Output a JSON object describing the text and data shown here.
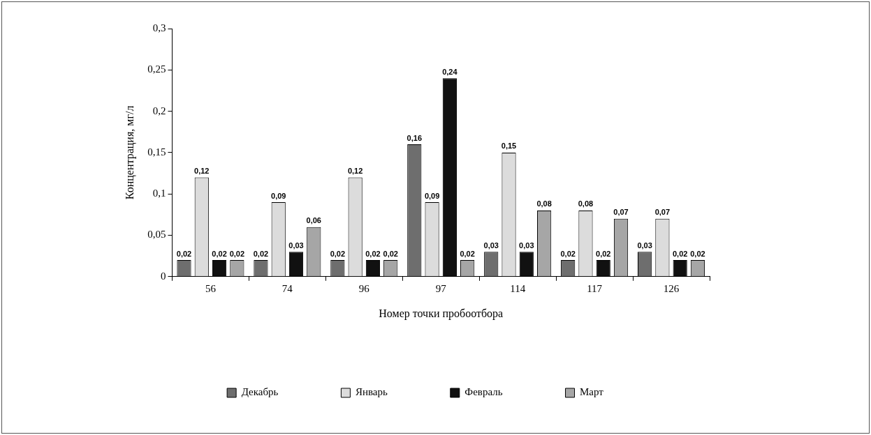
{
  "chart_data": {
    "type": "bar",
    "xlabel": "Номер точки пробоотбора",
    "ylabel": "Концентрация, мг/л",
    "categories": [
      "56",
      "74",
      "96",
      "97",
      "114",
      "117",
      "126"
    ],
    "series": [
      {
        "name": "Декабрь",
        "color": "#6e6e6e",
        "values": [
          0.02,
          0.02,
          0.02,
          0.16,
          0.03,
          0.02,
          0.03
        ],
        "value_labels": [
          "0,02",
          "0,02",
          "0,02",
          "0,16",
          "0,03",
          "0,02",
          "0,03"
        ]
      },
      {
        "name": "Январь",
        "color": "#dcdcdc",
        "values": [
          0.12,
          0.09,
          0.12,
          0.09,
          0.15,
          0.08,
          0.07
        ],
        "value_labels": [
          "0,12",
          "0,09",
          "0,12",
          "0,09",
          "0,15",
          "0,08",
          "0,07"
        ]
      },
      {
        "name": "Февраль",
        "color": "#111111",
        "values": [
          0.02,
          0.03,
          0.02,
          0.24,
          0.03,
          0.02,
          0.02
        ],
        "value_labels": [
          "0,02",
          "0,03",
          "0,02",
          "0,24",
          "0,03",
          "0,02",
          "0,02"
        ]
      },
      {
        "name": "Март",
        "color": "#a6a6a6",
        "values": [
          0.02,
          0.06,
          0.02,
          0.02,
          0.08,
          0.07,
          0.02
        ],
        "value_labels": [
          "0,02",
          "0,06",
          "0,02",
          "0,02",
          "0,08",
          "0,07",
          "0,02"
        ]
      }
    ],
    "ylim": [
      0,
      0.3
    ],
    "yticks": [
      {
        "value": 0,
        "label": "0"
      },
      {
        "value": 0.05,
        "label": "0,05"
      },
      {
        "value": 0.1,
        "label": "0,1"
      },
      {
        "value": 0.15,
        "label": "0,15"
      },
      {
        "value": 0.2,
        "label": "0,2"
      },
      {
        "value": 0.25,
        "label": "0,25"
      },
      {
        "value": 0.3,
        "label": "0,3"
      }
    ],
    "grid": false,
    "legend": "bottom"
  }
}
